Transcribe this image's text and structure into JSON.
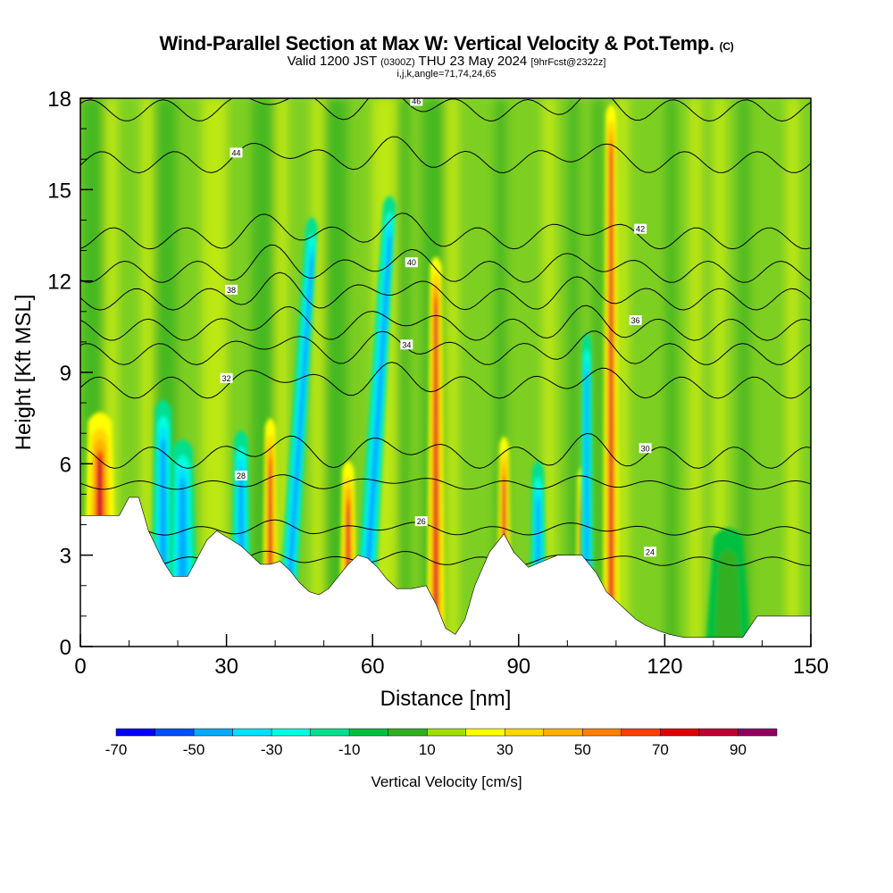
{
  "header": {
    "title": "Wind-Parallel Section at Max W: Vertical Velocity & Pot.Temp.",
    "title_units": "(C)",
    "subtitle_a": "Valid 1200 JST",
    "subtitle_utc": "(0300Z)",
    "subtitle_b": "THU 23 May 2024",
    "subtitle_fcst": "[9hrFcst@2322z]",
    "grid_info": "i,j,k,angle=71,74,24,65"
  },
  "chart_data": {
    "type": "heatmap",
    "xlabel": "Distance [nm]",
    "ylabel": "Height [Kft MSL]",
    "xlim": [
      0,
      150
    ],
    "ylim": [
      0,
      18
    ],
    "x_ticks": [
      0,
      30,
      60,
      90,
      120,
      150
    ],
    "y_ticks": [
      0,
      3,
      6,
      9,
      12,
      15,
      18
    ],
    "colorbar": {
      "label": "Vertical Velocity [cm/s]",
      "tick_labels": [
        -70,
        -50,
        -30,
        -10,
        10,
        30,
        50,
        70,
        90
      ],
      "levels": [
        -70,
        -60,
        -50,
        -40,
        -30,
        -20,
        -10,
        0,
        10,
        20,
        30,
        40,
        50,
        60,
        70,
        80,
        90,
        100
      ],
      "colors": [
        "#0000ff",
        "#0050ff",
        "#00aaff",
        "#00e0ff",
        "#00ffe0",
        "#00e090",
        "#00c040",
        "#30b020",
        "#a0e000",
        "#ffff00",
        "#ffd800",
        "#ffb000",
        "#ff8000",
        "#ff4000",
        "#e00000",
        "#c00030",
        "#900060",
        "#600090"
      ]
    },
    "terrain": [
      [
        0,
        4.3
      ],
      [
        8,
        4.3
      ],
      [
        10,
        4.9
      ],
      [
        12,
        4.9
      ],
      [
        14,
        3.8
      ],
      [
        17,
        2.8
      ],
      [
        19,
        2.3
      ],
      [
        22,
        2.3
      ],
      [
        24,
        2.9
      ],
      [
        26,
        3.5
      ],
      [
        28,
        3.8
      ],
      [
        30,
        3.6
      ],
      [
        33,
        3.3
      ],
      [
        35,
        3.0
      ],
      [
        37,
        2.7
      ],
      [
        39,
        2.7
      ],
      [
        41,
        2.8
      ],
      [
        43,
        2.5
      ],
      [
        45,
        2.1
      ],
      [
        47,
        1.8
      ],
      [
        49,
        1.7
      ],
      [
        51,
        1.9
      ],
      [
        53,
        2.3
      ],
      [
        55,
        2.7
      ],
      [
        57,
        3.0
      ],
      [
        59,
        2.9
      ],
      [
        61,
        2.6
      ],
      [
        63,
        2.2
      ],
      [
        65,
        1.9
      ],
      [
        68,
        1.9
      ],
      [
        71,
        2.0
      ],
      [
        73,
        1.4
      ],
      [
        75,
        0.6
      ],
      [
        77,
        0.4
      ],
      [
        79,
        0.9
      ],
      [
        81,
        2.0
      ],
      [
        84,
        3.1
      ],
      [
        87,
        3.7
      ],
      [
        89,
        3.1
      ],
      [
        92,
        2.6
      ],
      [
        95,
        2.8
      ],
      [
        98,
        3.0
      ],
      [
        100,
        3.0
      ],
      [
        103,
        3.0
      ],
      [
        106,
        2.4
      ],
      [
        108,
        1.8
      ],
      [
        110,
        1.5
      ],
      [
        112,
        1.2
      ],
      [
        114,
        0.9
      ],
      [
        116,
        0.7
      ],
      [
        119,
        0.5
      ],
      [
        121,
        0.4
      ],
      [
        124,
        0.3
      ],
      [
        128,
        0.3
      ],
      [
        132,
        0.3
      ],
      [
        136,
        0.3
      ],
      [
        139,
        1.0
      ],
      [
        143,
        1.0
      ],
      [
        150,
        1.0
      ]
    ],
    "isentropes": [
      {
        "base": 8.5,
        "label": "32"
      },
      {
        "base": 9.6,
        "label": "34"
      },
      {
        "base": 10.4,
        "label": "36"
      },
      {
        "base": 11.4,
        "label": "38"
      },
      {
        "base": 12.3,
        "label": "40"
      },
      {
        "base": 13.4,
        "label": "42"
      },
      {
        "base": 15.9,
        "label": "44"
      },
      {
        "base": 17.6,
        "label": "46"
      },
      {
        "base": 6.2,
        "label": "30"
      },
      {
        "base": 5.3,
        "label": "28"
      },
      {
        "base": 3.8,
        "label": "26"
      },
      {
        "base": 2.8,
        "label": "24"
      }
    ],
    "plumes": [
      {
        "x": 4,
        "top": 7.4,
        "w": 40,
        "type": "warm"
      },
      {
        "x": 17,
        "top": 7.8,
        "w": 28,
        "type": "cold"
      },
      {
        "x": 21,
        "top": 6.5,
        "w": 34,
        "type": "cold"
      },
      {
        "x": 33,
        "top": 6.8,
        "w": 24,
        "type": "cold"
      },
      {
        "x": 39,
        "top": 7.2,
        "w": 18,
        "type": "warm"
      },
      {
        "x": 42,
        "top": 13.8,
        "w": 20,
        "type": "cold"
      },
      {
        "x": 55,
        "top": 5.8,
        "w": 20,
        "type": "warm"
      },
      {
        "x": 58,
        "top": 14.5,
        "w": 22,
        "type": "cold"
      },
      {
        "x": 73,
        "top": 12.5,
        "w": 20,
        "type": "warm"
      },
      {
        "x": 87,
        "top": 6.6,
        "w": 16,
        "type": "warm"
      },
      {
        "x": 94,
        "top": 5.8,
        "w": 20,
        "type": "cold"
      },
      {
        "x": 103,
        "top": 5.6,
        "w": 14,
        "type": "warm"
      },
      {
        "x": 104,
        "top": 10.0,
        "w": 16,
        "type": "cold"
      },
      {
        "x": 109,
        "top": 17.5,
        "w": 18,
        "type": "warm"
      },
      {
        "x": 133,
        "top": 3.6,
        "w": 50,
        "type": "neutral"
      }
    ]
  }
}
